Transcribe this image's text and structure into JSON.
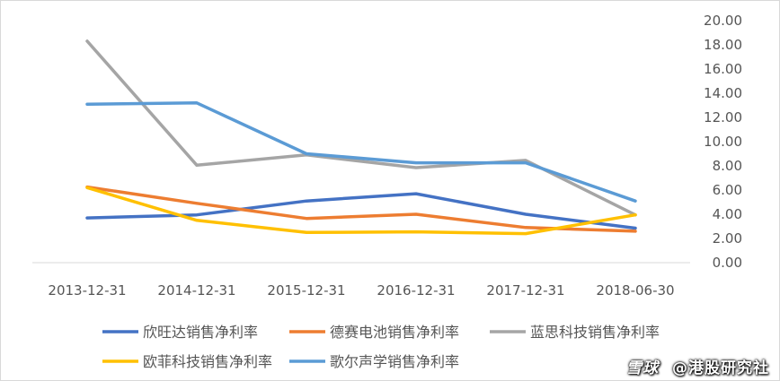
{
  "chart_data": {
    "type": "line",
    "categories": [
      "2013-12-31",
      "2014-12-31",
      "2015-12-31",
      "2016-12-31",
      "2017-12-31",
      "2018-06-30"
    ],
    "y_ticks": [
      "0.00",
      "2.00",
      "4.00",
      "6.00",
      "8.00",
      "10.00",
      "12.00",
      "14.00",
      "16.00",
      "18.00",
      "20.00"
    ],
    "ylim": [
      0,
      20
    ],
    "y_axis_side": "right",
    "grid": false,
    "legend_position": "bottom",
    "series": [
      {
        "name": "欣旺达销售净利率",
        "color": "#4472C4",
        "values": [
          3.7,
          3.95,
          5.1,
          5.7,
          4.0,
          2.85
        ]
      },
      {
        "name": "德赛电池销售净利率",
        "color": "#ED7D31",
        "values": [
          6.25,
          4.9,
          3.65,
          4.0,
          2.9,
          2.6
        ]
      },
      {
        "name": "蓝思科技销售净利率",
        "color": "#A5A5A5",
        "values": [
          18.3,
          8.05,
          8.9,
          7.85,
          8.45,
          3.95
        ]
      },
      {
        "name": "欧菲科技销售净利率",
        "color": "#FFC000",
        "values": [
          6.2,
          3.5,
          2.5,
          2.55,
          2.4,
          3.95
        ]
      },
      {
        "name": "歌尔声学销售净利率",
        "color": "#5B9BD5",
        "values": [
          13.1,
          13.2,
          9.0,
          8.25,
          8.25,
          5.1
        ]
      }
    ]
  },
  "watermark": {
    "logo_text": "雪球",
    "account_text": "@港股研究社"
  }
}
